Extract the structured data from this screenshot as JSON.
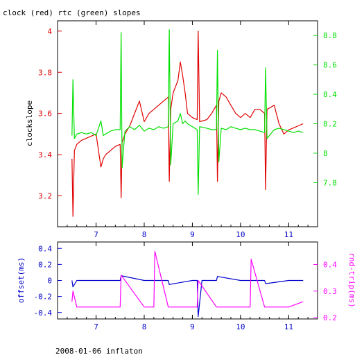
{
  "header": {
    "title": "clock (red) rtc (green) slopes"
  },
  "footer": {
    "caption": "2008-01-06 inflaton"
  },
  "colors": {
    "red": "#e00000",
    "green": "#00e000",
    "blue": "#0000cc",
    "magenta": "#ff00ff",
    "frame": "#000000"
  },
  "chart_data": [
    {
      "type": "line",
      "title": "clock (red) rtc (green) slopes",
      "xlabel": "",
      "ylabel": "clockslope",
      "xlim": [
        6.2,
        11.6
      ],
      "ylim_left": [
        3.05,
        4.05
      ],
      "ylim_right": [
        7.5,
        8.9
      ],
      "x_ticks": [
        7,
        8,
        9,
        10,
        11
      ],
      "y_ticks_left": [
        3.2,
        3.4,
        3.6,
        3.8,
        4
      ],
      "y_ticks_left_labels": [
        "3.2",
        "3.4",
        "3.6",
        "3.8",
        "4"
      ],
      "y_ticks_right": [
        7.8,
        8,
        8.2,
        8.4,
        8.6,
        8.8
      ],
      "y_ticks_right_labels": [
        "7.8",
        "8",
        "8.2",
        "8.4",
        "8.6",
        "8.8"
      ],
      "series": [
        {
          "color": "red",
          "axis": "left",
          "x": [
            6.5,
            6.52,
            6.55,
            6.6,
            6.7,
            6.8,
            6.9,
            7.0,
            7.1,
            7.15,
            7.2,
            7.3,
            7.4,
            7.5,
            7.52,
            7.54,
            7.6,
            7.7,
            7.8,
            7.9,
            8.0,
            8.1,
            8.2,
            8.3,
            8.4,
            8.5,
            8.52,
            8.55,
            8.6,
            8.7,
            8.75,
            8.8,
            8.85,
            8.9,
            9.0,
            9.1,
            9.12,
            9.15,
            9.3,
            9.4,
            9.5,
            9.52,
            9.55,
            9.6,
            9.7,
            9.8,
            9.9,
            10.0,
            10.1,
            10.2,
            10.3,
            10.4,
            10.5,
            10.52,
            10.55,
            10.7,
            10.8,
            10.9,
            11.0,
            11.1,
            11.2,
            11.3
          ],
          "y": [
            3.38,
            3.1,
            3.42,
            3.45,
            3.47,
            3.48,
            3.49,
            3.5,
            3.34,
            3.38,
            3.4,
            3.42,
            3.44,
            3.45,
            3.19,
            3.46,
            3.5,
            3.54,
            3.6,
            3.66,
            3.56,
            3.6,
            3.62,
            3.64,
            3.66,
            3.68,
            3.27,
            3.62,
            3.7,
            3.76,
            3.85,
            3.78,
            3.7,
            3.6,
            3.58,
            3.57,
            4.0,
            3.56,
            3.57,
            3.6,
            3.64,
            3.27,
            3.66,
            3.7,
            3.68,
            3.64,
            3.6,
            3.58,
            3.6,
            3.58,
            3.62,
            3.62,
            3.6,
            3.23,
            3.62,
            3.64,
            3.55,
            3.5,
            3.52,
            3.53,
            3.54,
            3.55
          ]
        },
        {
          "color": "green",
          "axis": "right",
          "x": [
            6.5,
            6.52,
            6.55,
            6.6,
            6.7,
            6.8,
            6.9,
            7.0,
            7.1,
            7.15,
            7.2,
            7.3,
            7.4,
            7.5,
            7.52,
            7.54,
            7.6,
            7.7,
            7.8,
            7.9,
            8.0,
            8.1,
            8.2,
            8.3,
            8.4,
            8.5,
            8.52,
            8.55,
            8.6,
            8.7,
            8.75,
            8.8,
            8.85,
            8.9,
            9.0,
            9.1,
            9.12,
            9.15,
            9.3,
            9.4,
            9.5,
            9.52,
            9.55,
            9.6,
            9.7,
            9.8,
            9.9,
            10.0,
            10.1,
            10.2,
            10.3,
            10.4,
            10.5,
            10.52,
            10.55,
            10.7,
            10.8,
            10.9,
            11.0,
            11.1,
            11.2,
            11.3
          ],
          "y": [
            8.12,
            8.5,
            8.1,
            8.13,
            8.14,
            8.13,
            8.14,
            8.12,
            8.22,
            8.12,
            8.13,
            8.15,
            8.16,
            8.16,
            8.82,
            7.9,
            8.15,
            8.18,
            8.16,
            8.19,
            8.15,
            8.17,
            8.16,
            8.18,
            8.17,
            8.18,
            8.84,
            7.92,
            8.2,
            8.22,
            8.27,
            8.2,
            8.22,
            8.2,
            8.18,
            8.16,
            7.72,
            8.18,
            8.17,
            8.16,
            8.16,
            8.7,
            7.94,
            8.17,
            8.16,
            8.18,
            8.17,
            8.16,
            8.17,
            8.16,
            8.16,
            8.15,
            8.14,
            8.58,
            8.1,
            8.16,
            8.17,
            8.16,
            8.15,
            8.14,
            8.15,
            8.14
          ]
        }
      ]
    },
    {
      "type": "line",
      "xlabel": "",
      "ylabel": "offset(ms)",
      "ylabel_right": "rnd-trip(ms)",
      "xlim": [
        6.2,
        11.6
      ],
      "ylim_left": [
        -0.48,
        0.48
      ],
      "ylim_right": [
        0.195,
        0.485
      ],
      "x_ticks": [
        7,
        8,
        9,
        10,
        11
      ],
      "y_ticks_left": [
        0.4,
        0.2,
        0,
        -0.2,
        -0.4
      ],
      "y_ticks_left_labels": [
        "0.4",
        "0.2",
        "0",
        "-0.2",
        "-0.4"
      ],
      "y_ticks_right": [
        0.4,
        0.3,
        0.2
      ],
      "y_ticks_right_labels": [
        "0.4",
        "0.3",
        "0.2"
      ],
      "series": [
        {
          "color": "blue",
          "axis": "left",
          "x": [
            6.5,
            6.52,
            6.6,
            7.0,
            7.5,
            7.52,
            8.0,
            8.5,
            8.52,
            9.0,
            9.1,
            9.12,
            9.2,
            9.5,
            9.52,
            10.0,
            10.5,
            10.52,
            11.0,
            11.3
          ],
          "y": [
            0.0,
            -0.08,
            0.0,
            0.0,
            0.0,
            0.06,
            0.0,
            0.0,
            -0.05,
            0.0,
            0.0,
            -0.45,
            0.0,
            0.0,
            0.05,
            0.0,
            0.0,
            -0.04,
            0.0,
            0.0
          ]
        },
        {
          "color": "magenta",
          "axis": "right",
          "x": [
            6.5,
            6.52,
            6.6,
            7.0,
            7.5,
            7.52,
            8.0,
            8.2,
            8.22,
            8.5,
            9.0,
            9.1,
            9.12,
            9.5,
            10.0,
            10.2,
            10.22,
            10.5,
            11.0,
            11.3
          ],
          "y": [
            0.26,
            0.3,
            0.24,
            0.24,
            0.24,
            0.36,
            0.24,
            0.24,
            0.45,
            0.24,
            0.24,
            0.24,
            0.34,
            0.24,
            0.24,
            0.24,
            0.42,
            0.24,
            0.24,
            0.26
          ]
        }
      ]
    }
  ]
}
